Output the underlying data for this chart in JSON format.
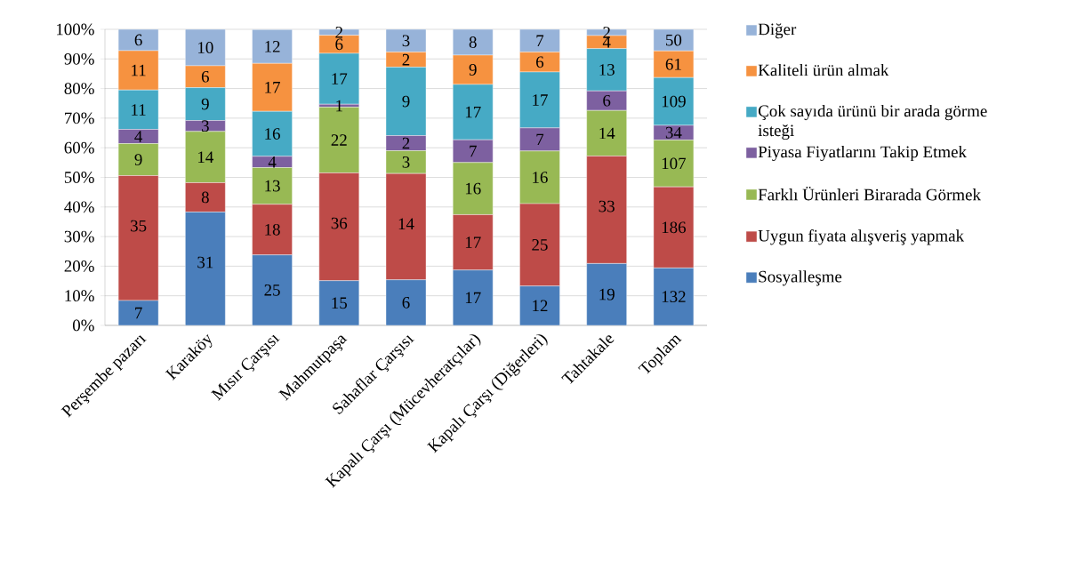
{
  "chart_data": {
    "type": "bar",
    "stacked": true,
    "categories": [
      "Perşembe pazarı",
      "Karaköy",
      "Mısır Çarşısı",
      "Mahmutpaşa",
      "Sahaflar Çarşısı",
      "Kapalı Çarşı (Mücevheratçılar)",
      "Kapalı Çarşı (Diğerleri)",
      "Tahtakale",
      "Toplam"
    ],
    "ylim": [
      0,
      100
    ],
    "yticks": [
      {
        "value": 0,
        "label": "0%"
      },
      {
        "value": 10,
        "label": "10%"
      },
      {
        "value": 20,
        "label": "20%"
      },
      {
        "value": 30,
        "label": "30%"
      },
      {
        "value": 40,
        "label": "40%"
      },
      {
        "value": 50,
        "label": "50%"
      },
      {
        "value": 60,
        "label": "60%"
      },
      {
        "value": 70,
        "label": "70%"
      },
      {
        "value": 80,
        "label": "80%"
      },
      {
        "value": 90,
        "label": "90%"
      },
      {
        "value": 100,
        "label": "100%"
      }
    ],
    "grid": "y",
    "legend": "right",
    "series": [
      {
        "name": "Sosyalleşme",
        "color": "#4a7ebb",
        "values": [
          8.4,
          38.3,
          23.8,
          15.1,
          15.4,
          18.7,
          13.3,
          20.9,
          19.4
        ]
      },
      {
        "name": "Uygun fiyata alışveriş yapmak",
        "color": "#be4b48",
        "values": [
          42.2,
          9.9,
          17.1,
          36.4,
          35.9,
          18.7,
          27.8,
          36.3,
          27.4
        ]
      },
      {
        "name": "Farklı Ürünleri Birarada Görmek",
        "color": "#98b954",
        "values": [
          10.8,
          17.3,
          12.4,
          22.2,
          7.7,
          17.6,
          17.8,
          15.4,
          15.8
        ]
      },
      {
        "name": "Piyasa Fiyatlarını Takip Etmek",
        "color": "#7d60a0",
        "values": [
          4.8,
          3.7,
          3.8,
          1.0,
          5.1,
          7.7,
          7.8,
          6.6,
          5.0
        ]
      },
      {
        "name": "Çok sayıda ürünü bir arada görme isteği",
        "color": "#46aac5",
        "values": [
          13.3,
          11.1,
          15.2,
          17.2,
          23.1,
          18.7,
          18.9,
          14.3,
          16.1
        ]
      },
      {
        "name": "Kaliteli ürün almak",
        "color": "#f69240",
        "values": [
          13.3,
          7.4,
          16.2,
          6.1,
          5.1,
          9.9,
          6.7,
          4.4,
          9.0
        ]
      },
      {
        "name": "Diğer",
        "color": "#97b3d9",
        "values": [
          7.2,
          12.3,
          11.4,
          2.0,
          7.7,
          8.7,
          7.7,
          2.1,
          7.3
        ]
      }
    ],
    "annotations": [
      {
        "text": "7",
        "x": "Perşembe pazarı",
        "y": 8.4
      },
      {
        "text": "35",
        "x": "Perşembe pazarı",
        "y": 50.6
      },
      {
        "text": "9",
        "x": "Perşembe pazarı",
        "y": 61.4
      },
      {
        "text": "4",
        "x": "Perşembe pazarı",
        "y": 66.2
      },
      {
        "text": "11",
        "x": "Perşembe pazarı",
        "y": 79.5
      },
      {
        "text": "11",
        "x": "Perşembe pazarı",
        "y": 92.8
      },
      {
        "text": "6",
        "x": "Perşembe pazarı",
        "y": 100
      },
      {
        "text": "31",
        "x": "Karaköy",
        "y": 38.3
      },
      {
        "text": "8",
        "x": "Karaköy",
        "y": 48.2
      },
      {
        "text": "14",
        "x": "Karaköy",
        "y": 65.5
      },
      {
        "text": "3",
        "x": "Karaköy",
        "y": 69.2
      },
      {
        "text": "9",
        "x": "Karaköy",
        "y": 80.3
      },
      {
        "text": "6",
        "x": "Karaköy",
        "y": 87.7
      },
      {
        "text": "10",
        "x": "Karaköy",
        "y": 100
      },
      {
        "text": "25",
        "x": "Mısır Çarşısı",
        "y": 23.8
      },
      {
        "text": "18",
        "x": "Mısır Çarşısı",
        "y": 40.9
      },
      {
        "text": "13",
        "x": "Mısır Çarşısı",
        "y": 53.3
      },
      {
        "text": "4",
        "x": "Mısır Çarşısı",
        "y": 57.1
      },
      {
        "text": "16",
        "x": "Mısır Çarşısı",
        "y": 72.3
      },
      {
        "text": "17",
        "x": "Mısır Çarşısı",
        "y": 88.5
      },
      {
        "text": "12",
        "x": "Mısır Çarşısı",
        "y": 99.9
      },
      {
        "text": "15",
        "x": "Mahmutpaşa",
        "y": 15.1
      },
      {
        "text": "36",
        "x": "Mahmutpaşa",
        "y": 51.5
      },
      {
        "text": "22",
        "x": "Mahmutpaşa",
        "y": 73.7
      },
      {
        "text": "1",
        "x": "Mahmutpaşa",
        "y": 74.7
      },
      {
        "text": "17",
        "x": "Mahmutpaşa",
        "y": 91.9
      },
      {
        "text": "6",
        "x": "Mahmutpaşa",
        "y": 98.0
      },
      {
        "text": "2",
        "x": "Mahmutpaşa",
        "y": 100
      },
      {
        "text": "6",
        "x": "Sahaflar Çarşısı",
        "y": 15.4
      },
      {
        "text": "14",
        "x": "Sahaflar Çarşısı",
        "y": 51.3
      },
      {
        "text": "3",
        "x": "Sahaflar Çarşısı",
        "y": 59.0
      },
      {
        "text": "2",
        "x": "Sahaflar Çarşısı",
        "y": 64.1
      },
      {
        "text": "9",
        "x": "Sahaflar Çarşısı",
        "y": 87.2
      },
      {
        "text": "2",
        "x": "Sahaflar Çarşısı",
        "y": 92.3
      },
      {
        "text": "3",
        "x": "Sahaflar Çarşısı",
        "y": 100
      },
      {
        "text": "17",
        "x": "Kapalı Çarşı (Mücevheratçılar)",
        "y": 18.7
      },
      {
        "text": "17",
        "x": "Kapalı Çarşı (Mücevheratçılar)",
        "y": 37.4
      },
      {
        "text": "16",
        "x": "Kapalı Çarşı (Mücevheratçılar)",
        "y": 55.0
      },
      {
        "text": "7",
        "x": "Kapalı Çarşı (Mücevheratçılar)",
        "y": 62.7
      },
      {
        "text": "17",
        "x": "Kapalı Çarşı (Mücevheratçılar)",
        "y": 81.4
      },
      {
        "text": "9",
        "x": "Kapalı Çarşı (Mücevheratçılar)",
        "y": 91.3
      },
      {
        "text": "8",
        "x": "Kapalı Çarşı (Mücevheratçılar)",
        "y": 100
      },
      {
        "text": "12",
        "x": "Kapalı Çarşı (Diğerleri)",
        "y": 13.3
      },
      {
        "text": "25",
        "x": "Kapalı Çarşı (Diğerleri)",
        "y": 41.1
      },
      {
        "text": "16",
        "x": "Kapalı Çarşı (Diğerleri)",
        "y": 58.9
      },
      {
        "text": "7",
        "x": "Kapalı Çarşı (Diğerleri)",
        "y": 66.7
      },
      {
        "text": "17",
        "x": "Kapalı Çarşı (Diğerleri)",
        "y": 85.6
      },
      {
        "text": "6",
        "x": "Kapalı Çarşı (Diğerleri)",
        "y": 92.3
      },
      {
        "text": "7",
        "x": "Kapalı Çarşı (Diğerleri)",
        "y": 100
      },
      {
        "text": "19",
        "x": "Tahtakale",
        "y": 20.9
      },
      {
        "text": "33",
        "x": "Tahtakale",
        "y": 57.2
      },
      {
        "text": "14",
        "x": "Tahtakale",
        "y": 72.6
      },
      {
        "text": "6",
        "x": "Tahtakale",
        "y": 79.2
      },
      {
        "text": "13",
        "x": "Tahtakale",
        "y": 93.5
      },
      {
        "text": "4",
        "x": "Tahtakale",
        "y": 97.9
      },
      {
        "text": "2",
        "x": "Tahtakale",
        "y": 100
      },
      {
        "text": "132",
        "x": "Toplam",
        "y": 19.4
      },
      {
        "text": "186",
        "x": "Toplam",
        "y": 46.8
      },
      {
        "text": "107",
        "x": "Toplam",
        "y": 62.6
      },
      {
        "text": "34",
        "x": "Toplam",
        "y": 67.6
      },
      {
        "text": "109",
        "x": "Toplam",
        "y": 83.7
      },
      {
        "text": "61",
        "x": "Toplam",
        "y": 92.7
      },
      {
        "text": "50",
        "x": "Toplam",
        "y": 100
      }
    ]
  }
}
